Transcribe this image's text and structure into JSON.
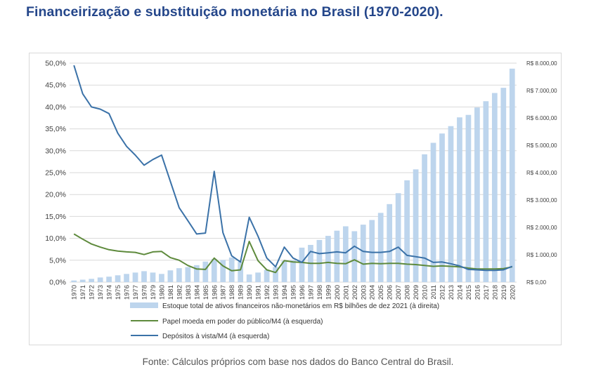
{
  "title": "Financeirização e substituição monetária no Brasil (1970-2020).",
  "source": "Fonte: Cálculos próprios com base nos dados do Banco Central do Brasil.",
  "colors": {
    "title": "#24468a",
    "bars": "#bdd5ed",
    "green_line": "#5e8a3c",
    "blue_line": "#3b72a8",
    "grid": "#d9d9d9",
    "axis_text": "#404040"
  },
  "chart_data": {
    "type": "bar",
    "categories": [
      "1970",
      "1971",
      "1972",
      "1973",
      "1974",
      "1975",
      "1976",
      "1977",
      "1978",
      "1979",
      "1980",
      "1981",
      "1982",
      "1983",
      "1984",
      "1985",
      "1986",
      "1987",
      "1988",
      "1989",
      "1990",
      "1991",
      "1992",
      "1993",
      "1994",
      "1995",
      "1996",
      "1997",
      "1998",
      "1999",
      "2000",
      "2001",
      "2002",
      "2003",
      "2004",
      "2005",
      "2006",
      "2007",
      "2008",
      "2009",
      "2010",
      "2011",
      "2012",
      "2013",
      "2014",
      "2015",
      "2016",
      "2017",
      "2018",
      "2019",
      "2020"
    ],
    "y_left": {
      "range": [
        0,
        50
      ],
      "ticks": [
        0,
        5,
        10,
        15,
        20,
        25,
        30,
        35,
        40,
        45,
        50
      ],
      "tick_labels": [
        "0,0%",
        "5,0%",
        "10,0%",
        "15,0%",
        "20,0%",
        "25,0%",
        "30,0%",
        "35,0%",
        "40,0%",
        "45,0%",
        "50,0%"
      ]
    },
    "y_right": {
      "range": [
        0,
        8000
      ],
      "ticks": [
        0,
        1000,
        2000,
        3000,
        4000,
        5000,
        6000,
        7000,
        8000
      ],
      "tick_labels": [
        "R$ 0,00",
        "R$ 1.000,00",
        "R$ 2.000,00",
        "R$ 3.000,00",
        "R$ 4.000,00",
        "R$ 5.000,00",
        "R$ 6.000,00",
        "R$ 7.000,00",
        "R$ 8.000,00"
      ]
    },
    "grid": true,
    "legend_position": "bottom",
    "series": [
      {
        "name": "Estoque total de ativos financeiros não-monetários em R$ bilhões de dez 2021 (à direita)",
        "kind": "bar",
        "axis": "right",
        "values": [
          60,
          90,
          120,
          170,
          200,
          250,
          300,
          350,
          400,
          350,
          300,
          430,
          510,
          550,
          620,
          750,
          850,
          810,
          900,
          750,
          280,
          350,
          450,
          550,
          780,
          800,
          1260,
          1360,
          1540,
          1690,
          1880,
          2040,
          1860,
          2100,
          2270,
          2530,
          2850,
          3250,
          3720,
          4120,
          4670,
          5090,
          5430,
          5700,
          6020,
          6110,
          6380,
          6610,
          6910,
          7100,
          7800
        ]
      },
      {
        "name": "Papel moeda em poder do público/M4 (à esquerda)",
        "kind": "line",
        "axis": "left",
        "values": [
          11.0,
          9.8,
          8.7,
          8.0,
          7.4,
          7.1,
          6.9,
          6.8,
          6.3,
          6.9,
          7.0,
          5.6,
          5.0,
          3.8,
          3.0,
          2.9,
          5.5,
          3.7,
          2.6,
          2.8,
          9.3,
          4.9,
          2.8,
          2.2,
          4.9,
          4.6,
          4.5,
          4.3,
          4.3,
          4.5,
          4.3,
          4.2,
          5.1,
          4.1,
          4.3,
          4.2,
          4.3,
          4.3,
          4.1,
          4.0,
          3.8,
          3.6,
          3.7,
          3.6,
          3.5,
          3.2,
          3.0,
          3.0,
          3.0,
          3.1,
          3.5
        ]
      },
      {
        "name": "Depósitos à vista/M4 (à esquerda)",
        "kind": "line",
        "axis": "left",
        "values": [
          49.5,
          43.0,
          40.0,
          39.5,
          38.5,
          34.0,
          31.0,
          29.0,
          26.7,
          28.0,
          29.0,
          23.0,
          17.0,
          14.0,
          11.0,
          11.2,
          25.3,
          11.3,
          6.0,
          4.6,
          14.8,
          10.5,
          5.5,
          3.5,
          8.0,
          5.5,
          4.5,
          7.0,
          6.5,
          6.7,
          6.9,
          6.7,
          8.2,
          7.0,
          6.8,
          6.8,
          7.0,
          8.0,
          6.1,
          5.8,
          5.5,
          4.5,
          4.6,
          4.2,
          3.7,
          2.9,
          2.8,
          2.7,
          2.7,
          2.8,
          3.6
        ]
      }
    ]
  }
}
